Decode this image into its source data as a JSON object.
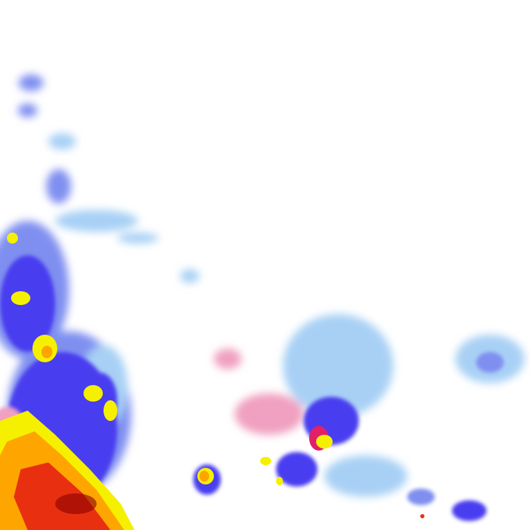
{
  "map": {
    "type": "precipitation-radar-tile",
    "background_color": "#ffffff",
    "intensity_colors": {
      "very_light": "#a8d0f5",
      "light": "#7f8ff0",
      "moderate": "#4a3ef0",
      "heavy": "#f5f000",
      "very_heavy": "#ffa500",
      "intense": "#e83010",
      "extreme": "#8b0000",
      "mixed_precip": "#f0a0c0",
      "mixed_heavy": "#e0206a"
    }
  }
}
